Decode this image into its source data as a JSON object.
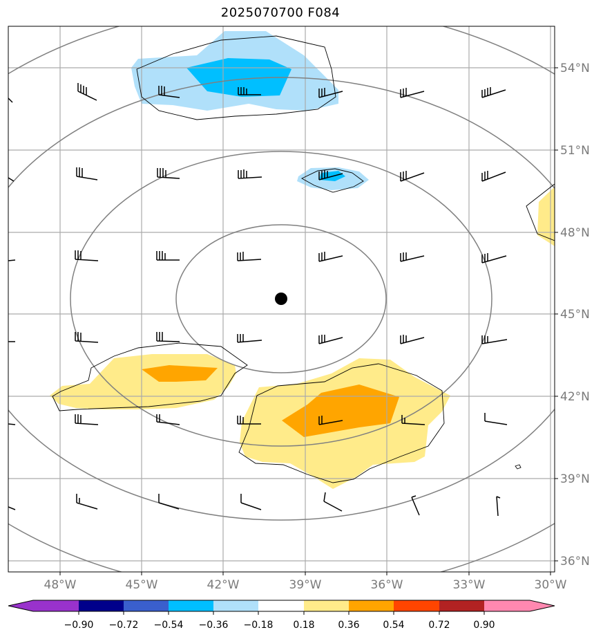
{
  "title": "2025070700 F084",
  "map": {
    "projection": "orthographic-like",
    "lon_ticks": [
      "48°W",
      "45°W",
      "42°W",
      "39°W",
      "36°W",
      "33°W",
      "30°W"
    ],
    "lat_ticks": [
      "54°N",
      "51°N",
      "48°N",
      "45°N",
      "42°N",
      "39°N",
      "36°N"
    ],
    "center_marker": "storm-center-dot",
    "gridline_color": "#aaaaaa",
    "range_ring_color": "#808080"
  },
  "colorbar": {
    "ticks": [
      "−0.90",
      "−0.72",
      "−0.54",
      "−0.36",
      "−0.18",
      "0.18",
      "0.36",
      "0.54",
      "0.72",
      "0.90"
    ],
    "colors": [
      "#9932cc",
      "#00008b",
      "#3a5fcd",
      "#00bfff",
      "#b0e0fa",
      "#ffffff",
      "#ffeb8a",
      "#ffa500",
      "#ff4500",
      "#b22222",
      "#ff88b0"
    ]
  },
  "shading": {
    "negative_fill_light": "#b0e0fa",
    "negative_fill_dark": "#00bfff",
    "positive_fill_light": "#ffeb8a",
    "positive_fill_dark": "#ffa500"
  }
}
